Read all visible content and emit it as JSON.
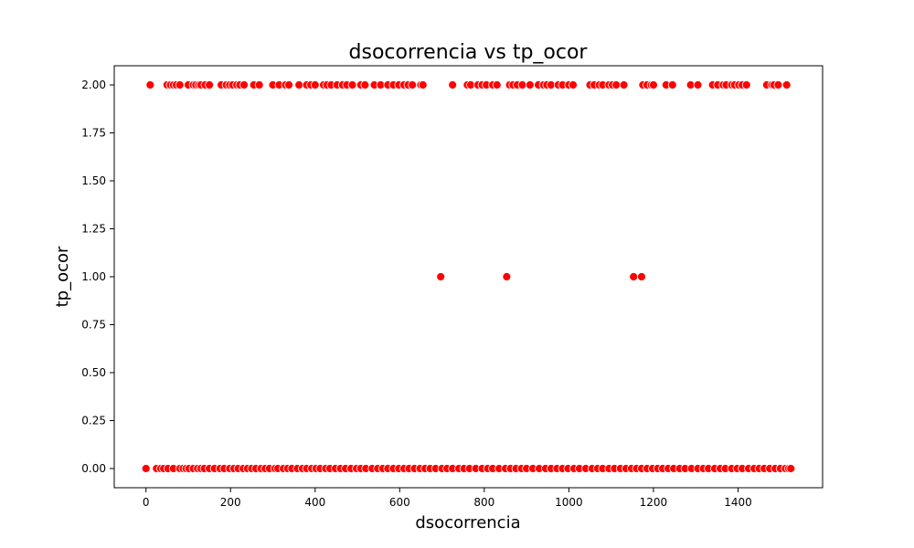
{
  "chart_data": {
    "type": "scatter",
    "title": "dsocorrencia vs tp_ocor",
    "xlabel": "dsocorrencia",
    "ylabel": "tp_ocor",
    "xlim": [
      -75,
      1600
    ],
    "ylim": [
      -0.1,
      2.1
    ],
    "xticks": [
      0,
      200,
      400,
      600,
      800,
      1000,
      1200,
      1400
    ],
    "xtick_labels": [
      "0",
      "200",
      "400",
      "600",
      "800",
      "1000",
      "1200",
      "1400"
    ],
    "yticks": [
      0.0,
      0.25,
      0.5,
      0.75,
      1.0,
      1.25,
      1.5,
      1.75,
      2.0
    ],
    "ytick_labels": [
      "0.00",
      "0.25",
      "0.50",
      "0.75",
      "1.00",
      "1.25",
      "1.50",
      "1.75",
      "2.00"
    ],
    "grid": false,
    "marker_color": "#ff0000",
    "marker_edge_color": "#ffffff",
    "series": [
      {
        "points": [
          [
            10,
            2
          ],
          [
            50,
            2
          ],
          [
            58,
            2
          ],
          [
            65,
            2
          ],
          [
            72,
            2
          ],
          [
            80,
            2
          ],
          [
            100,
            2
          ],
          [
            112,
            2
          ],
          [
            118,
            2
          ],
          [
            125,
            2
          ],
          [
            130,
            2
          ],
          [
            140,
            2
          ],
          [
            150,
            2
          ],
          [
            178,
            2
          ],
          [
            190,
            2
          ],
          [
            198,
            2
          ],
          [
            205,
            2
          ],
          [
            215,
            2
          ],
          [
            222,
            2
          ],
          [
            232,
            2
          ],
          [
            255,
            2
          ],
          [
            268,
            2
          ],
          [
            300,
            2
          ],
          [
            315,
            2
          ],
          [
            330,
            2
          ],
          [
            338,
            2
          ],
          [
            362,
            2
          ],
          [
            380,
            2
          ],
          [
            390,
            2
          ],
          [
            400,
            2
          ],
          [
            420,
            2
          ],
          [
            428,
            2
          ],
          [
            438,
            2
          ],
          [
            452,
            2
          ],
          [
            465,
            2
          ],
          [
            475,
            2
          ],
          [
            488,
            2
          ],
          [
            508,
            2
          ],
          [
            518,
            2
          ],
          [
            540,
            2
          ],
          [
            555,
            2
          ],
          [
            572,
            2
          ],
          [
            585,
            2
          ],
          [
            598,
            2
          ],
          [
            610,
            2
          ],
          [
            620,
            2
          ],
          [
            630,
            2
          ],
          [
            650,
            2
          ],
          [
            655,
            2
          ],
          [
            725,
            2
          ],
          [
            760,
            2
          ],
          [
            768,
            2
          ],
          [
            785,
            2
          ],
          [
            795,
            2
          ],
          [
            805,
            2
          ],
          [
            820,
            2
          ],
          [
            830,
            2
          ],
          [
            860,
            2
          ],
          [
            868,
            2
          ],
          [
            878,
            2
          ],
          [
            890,
            2
          ],
          [
            908,
            2
          ],
          [
            928,
            2
          ],
          [
            940,
            2
          ],
          [
            948,
            2
          ],
          [
            958,
            2
          ],
          [
            975,
            2
          ],
          [
            985,
            2
          ],
          [
            1000,
            2
          ],
          [
            1010,
            2
          ],
          [
            1050,
            2
          ],
          [
            1060,
            2
          ],
          [
            1072,
            2
          ],
          [
            1080,
            2
          ],
          [
            1095,
            2
          ],
          [
            1103,
            2
          ],
          [
            1112,
            2
          ],
          [
            1130,
            2
          ],
          [
            1175,
            2
          ],
          [
            1185,
            2
          ],
          [
            1195,
            2
          ],
          [
            1200,
            2
          ],
          [
            1230,
            2
          ],
          [
            1245,
            2
          ],
          [
            1288,
            2
          ],
          [
            1305,
            2
          ],
          [
            1340,
            2
          ],
          [
            1352,
            2
          ],
          [
            1365,
            2
          ],
          [
            1372,
            2
          ],
          [
            1385,
            2
          ],
          [
            1392,
            2
          ],
          [
            1402,
            2
          ],
          [
            1410,
            2
          ],
          [
            1420,
            2
          ],
          [
            1468,
            2
          ],
          [
            1480,
            2
          ],
          [
            1485,
            2
          ],
          [
            1495,
            2
          ],
          [
            1515,
            2
          ],
          [
            697,
            1
          ],
          [
            853,
            1
          ],
          [
            1153,
            1
          ],
          [
            1172,
            1
          ],
          [
            0,
            0
          ],
          [
            25,
            0
          ],
          [
            35,
            0
          ],
          [
            42,
            0
          ],
          [
            52,
            0
          ],
          [
            65,
            0
          ],
          [
            80,
            0
          ],
          [
            88,
            0
          ],
          [
            95,
            0
          ],
          [
            102,
            0
          ],
          [
            112,
            0
          ],
          [
            122,
            0
          ],
          [
            130,
            0
          ],
          [
            138,
            0
          ],
          [
            150,
            0
          ],
          [
            162,
            0
          ],
          [
            175,
            0
          ],
          [
            185,
            0
          ],
          [
            198,
            0
          ],
          [
            208,
            0
          ],
          [
            218,
            0
          ],
          [
            230,
            0
          ],
          [
            240,
            0
          ],
          [
            250,
            0
          ],
          [
            260,
            0
          ],
          [
            272,
            0
          ],
          [
            282,
            0
          ],
          [
            292,
            0
          ],
          [
            305,
            0
          ],
          [
            312,
            0
          ],
          [
            325,
            0
          ],
          [
            335,
            0
          ],
          [
            345,
            0
          ],
          [
            358,
            0
          ],
          [
            370,
            0
          ],
          [
            380,
            0
          ],
          [
            392,
            0
          ],
          [
            402,
            0
          ],
          [
            412,
            0
          ],
          [
            425,
            0
          ],
          [
            435,
            0
          ],
          [
            448,
            0
          ],
          [
            460,
            0
          ],
          [
            472,
            0
          ],
          [
            485,
            0
          ],
          [
            498,
            0
          ],
          [
            508,
            0
          ],
          [
            520,
            0
          ],
          [
            535,
            0
          ],
          [
            548,
            0
          ],
          [
            560,
            0
          ],
          [
            572,
            0
          ],
          [
            585,
            0
          ],
          [
            598,
            0
          ],
          [
            610,
            0
          ],
          [
            622,
            0
          ],
          [
            635,
            0
          ],
          [
            648,
            0
          ],
          [
            660,
            0
          ],
          [
            672,
            0
          ],
          [
            685,
            0
          ],
          [
            700,
            0
          ],
          [
            712,
            0
          ],
          [
            725,
            0
          ],
          [
            740,
            0
          ],
          [
            752,
            0
          ],
          [
            765,
            0
          ],
          [
            780,
            0
          ],
          [
            795,
            0
          ],
          [
            808,
            0
          ],
          [
            820,
            0
          ],
          [
            835,
            0
          ],
          [
            850,
            0
          ],
          [
            862,
            0
          ],
          [
            875,
            0
          ],
          [
            888,
            0
          ],
          [
            900,
            0
          ],
          [
            915,
            0
          ],
          [
            930,
            0
          ],
          [
            945,
            0
          ],
          [
            958,
            0
          ],
          [
            972,
            0
          ],
          [
            985,
            0
          ],
          [
            998,
            0
          ],
          [
            1012,
            0
          ],
          [
            1025,
            0
          ],
          [
            1040,
            0
          ],
          [
            1055,
            0
          ],
          [
            1068,
            0
          ],
          [
            1080,
            0
          ],
          [
            1095,
            0
          ],
          [
            1108,
            0
          ],
          [
            1122,
            0
          ],
          [
            1135,
            0
          ],
          [
            1148,
            0
          ],
          [
            1160,
            0
          ],
          [
            1172,
            0
          ],
          [
            1185,
            0
          ],
          [
            1198,
            0
          ],
          [
            1210,
            0
          ],
          [
            1222,
            0
          ],
          [
            1235,
            0
          ],
          [
            1248,
            0
          ],
          [
            1262,
            0
          ],
          [
            1275,
            0
          ],
          [
            1290,
            0
          ],
          [
            1305,
            0
          ],
          [
            1318,
            0
          ],
          [
            1330,
            0
          ],
          [
            1345,
            0
          ],
          [
            1358,
            0
          ],
          [
            1370,
            0
          ],
          [
            1385,
            0
          ],
          [
            1398,
            0
          ],
          [
            1410,
            0
          ],
          [
            1425,
            0
          ],
          [
            1438,
            0
          ],
          [
            1450,
            0
          ],
          [
            1462,
            0
          ],
          [
            1475,
            0
          ],
          [
            1488,
            0
          ],
          [
            1500,
            0
          ],
          [
            1512,
            0
          ],
          [
            1520,
            0
          ],
          [
            1525,
            0
          ]
        ]
      }
    ]
  }
}
